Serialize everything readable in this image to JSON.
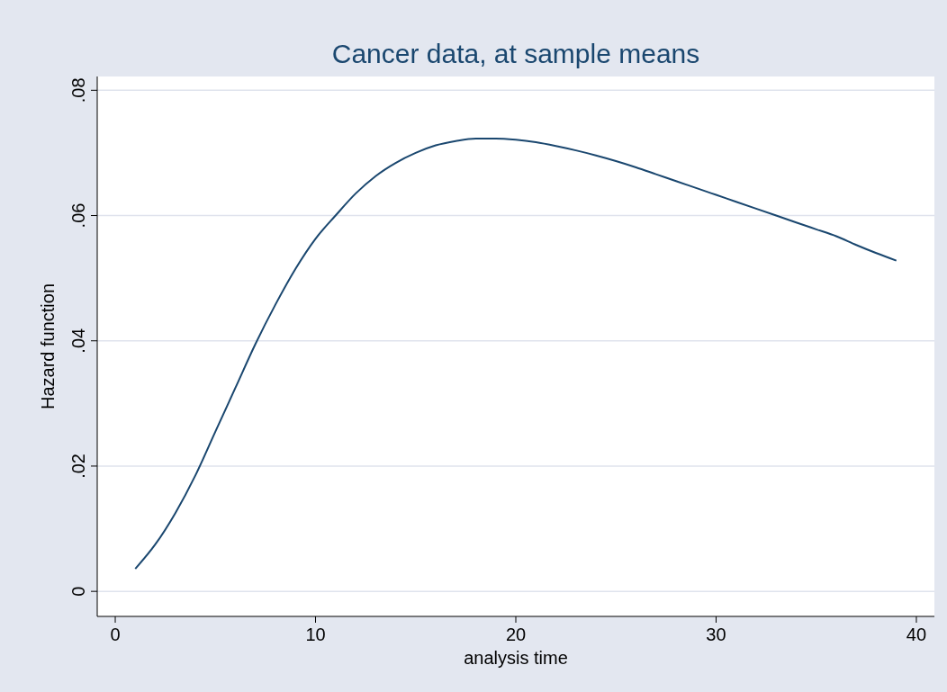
{
  "chart_data": {
    "type": "line",
    "title": "Cancer data, at sample means",
    "xlabel": "analysis time",
    "ylabel": "Hazard function",
    "x": [
      1,
      2,
      3,
      4,
      5,
      6,
      7,
      8,
      9,
      10,
      11,
      12,
      13,
      14,
      15,
      16,
      17,
      18,
      19,
      20,
      21,
      22,
      23,
      24,
      25,
      26,
      27,
      28,
      29,
      30,
      31,
      32,
      33,
      34,
      35,
      36,
      37,
      38,
      39
    ],
    "series": [
      {
        "color": "#1a476f",
        "values": [
          0.0036,
          0.0075,
          0.0125,
          0.0185,
          0.0255,
          0.0325,
          0.0395,
          0.0458,
          0.0515,
          0.0563,
          0.06,
          0.0635,
          0.0663,
          0.0684,
          0.07,
          0.0712,
          0.0719,
          0.0723,
          0.0723,
          0.0721,
          0.0717,
          0.0711,
          0.0704,
          0.0696,
          0.0687,
          0.0677,
          0.0666,
          0.0655,
          0.0644,
          0.0633,
          0.0622,
          0.0611,
          0.06,
          0.0589,
          0.0578,
          0.0567,
          0.0553,
          0.054,
          0.0528
        ]
      }
    ],
    "xlim": [
      -0.9,
      40.9
    ],
    "ylim": [
      -0.004,
      0.0822
    ],
    "xticks": [
      0,
      10,
      20,
      30,
      40
    ],
    "yticks": [
      0,
      {
        "value": 0.02,
        "label": ".02"
      },
      {
        "value": 0.04,
        "label": ".04"
      },
      {
        "value": 0.06,
        "label": ".06"
      },
      {
        "value": 0.08,
        "label": ".08"
      }
    ],
    "grid": "y",
    "marker": "none",
    "line_style": "solid"
  }
}
